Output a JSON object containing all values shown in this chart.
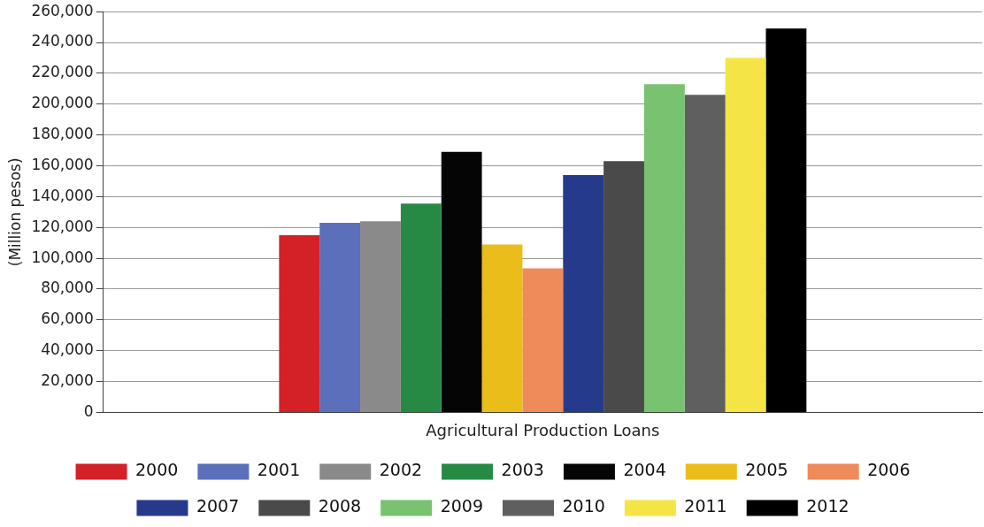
{
  "chart_data": {
    "type": "bar",
    "ylabel": "(Million pesos)",
    "categories": [
      "Agricultural Production Loans"
    ],
    "series": [
      {
        "name": "2000",
        "color": "#d42027",
        "values": [
          115000
        ]
      },
      {
        "name": "2001",
        "color": "#5b6fbb",
        "values": [
          123000
        ]
      },
      {
        "name": "2002",
        "color": "#8a8a8a",
        "values": [
          124000
        ]
      },
      {
        "name": "2003",
        "color": "#268a44",
        "values": [
          135500
        ]
      },
      {
        "name": "2004",
        "color": "#050505",
        "values": [
          169000
        ]
      },
      {
        "name": "2005",
        "color": "#ebbd1b",
        "values": [
          109000
        ]
      },
      {
        "name": "2006",
        "color": "#ef8a5a",
        "values": [
          93400
        ]
      },
      {
        "name": "2007",
        "color": "#263a8c",
        "values": [
          154000
        ]
      },
      {
        "name": "2008",
        "color": "#4a4a4a",
        "values": [
          163000
        ]
      },
      {
        "name": "2009",
        "color": "#78c270",
        "values": [
          213000
        ]
      },
      {
        "name": "2010",
        "color": "#5f5f5f",
        "values": [
          206000
        ]
      },
      {
        "name": "2011",
        "color": "#f5e445",
        "values": [
          230000
        ]
      },
      {
        "name": "2012",
        "color": "#000000",
        "values": [
          249000
        ]
      }
    ],
    "ylim": [
      0,
      260000
    ],
    "yticks": [
      0,
      {
        "value": 20000,
        "label": "20,000"
      },
      {
        "value": 40000,
        "label": "40,000"
      },
      {
        "value": 60000,
        "label": "60,000"
      },
      {
        "value": 80000,
        "label": "80,000"
      },
      {
        "value": 100000,
        "label": "100,000"
      },
      {
        "value": 120000,
        "label": "120,000"
      },
      {
        "value": 140000,
        "label": "140,000"
      },
      {
        "value": 160000,
        "label": "160,000"
      },
      {
        "value": 180000,
        "label": "180,000"
      },
      {
        "value": 200000,
        "label": "200,000"
      },
      {
        "value": 220000,
        "label": "220,000"
      },
      {
        "value": 240000,
        "label": "240,000"
      },
      {
        "value": 260000,
        "label": "260,000"
      }
    ],
    "grid": "y",
    "legend": "bottom"
  }
}
